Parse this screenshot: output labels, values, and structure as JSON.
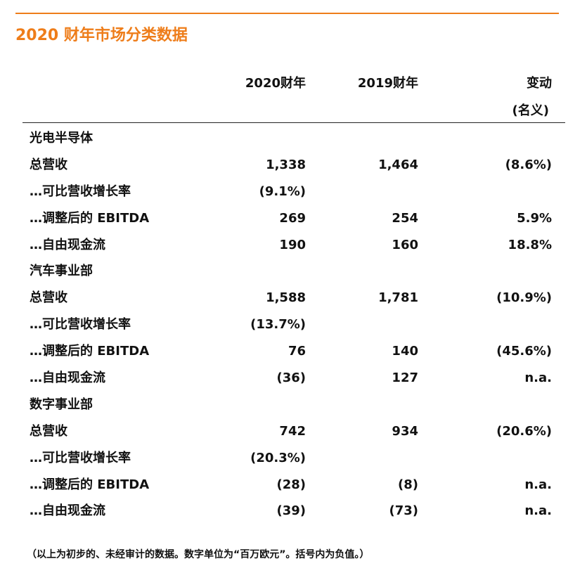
{
  "title": "2020 财年市场分类数据",
  "columns": {
    "y2020": "2020财年",
    "y2019": "2019财年",
    "change": "变动",
    "change_sub": "(名义)"
  },
  "rows": [
    {
      "label": "光电半导体",
      "v2020": "",
      "v2019": "",
      "change": ""
    },
    {
      "label": "总营收",
      "v2020": "1,338",
      "v2019": "1,464",
      "change": "(8.6%)"
    },
    {
      "label": "…可比营收增长率",
      "v2020": "(9.1%)",
      "v2019": "",
      "change": ""
    },
    {
      "label": "…调整后的 EBITDA",
      "v2020": "269",
      "v2019": "254",
      "change": "5.9%"
    },
    {
      "label": "…自由现金流",
      "v2020": "190",
      "v2019": "160",
      "change": "18.8%"
    },
    {
      "label": "汽车事业部",
      "v2020": "",
      "v2019": "",
      "change": ""
    },
    {
      "label": "总营收",
      "v2020": "1,588",
      "v2019": "1,781",
      "change": "(10.9%)"
    },
    {
      "label": "…可比营收增长率",
      "v2020": "(13.7%)",
      "v2019": "",
      "change": ""
    },
    {
      "label": "…调整后的 EBITDA",
      "v2020": "76",
      "v2019": "140",
      "change": "(45.6%)"
    },
    {
      "label": "…自由现金流",
      "v2020": "(36)",
      "v2019": "127",
      "change": "n.a."
    },
    {
      "label": "数字事业部",
      "v2020": "",
      "v2019": "",
      "change": ""
    },
    {
      "label": "总营收",
      "v2020": "742",
      "v2019": "934",
      "change": "(20.6%)"
    },
    {
      "label": "…可比营收增长率",
      "v2020": "(20.3%)",
      "v2019": "",
      "change": ""
    },
    {
      "label": "…调整后的 EBITDA",
      "v2020": "(28)",
      "v2019": "(8)",
      "change": "n.a."
    },
    {
      "label": "…自由现金流",
      "v2020": "(39)",
      "v2019": "(73)",
      "change": "n.a."
    }
  ],
  "footnote": "（以上为初步的、未经审计的数据。数字单位为“百万欧元”。括号内为负值。）",
  "colors": {
    "accent": "#ee7d1a",
    "text": "#111111"
  }
}
